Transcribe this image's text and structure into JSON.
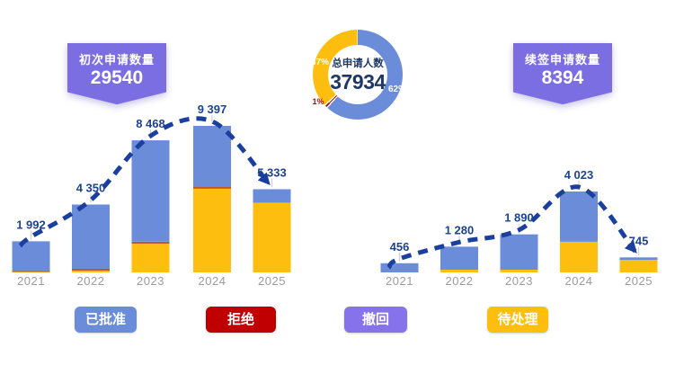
{
  "colors": {
    "badge_purple": "#7b6ee2",
    "approved_blue": "#6a8cd9",
    "pending_yellow": "#fdbe10",
    "rejected_red": "#c00000",
    "rejected_bar_orange": "#c2571f",
    "donut_rejected_dark_red": "#9c1010",
    "withdrawn_purple": "#8673eb",
    "trend_navy": "#1b3f9e",
    "value_label_navy": "#1c4390",
    "axis_gray": "#9b9b9b"
  },
  "badges": {
    "initial": {
      "title": "初次申请数量",
      "value": "29540"
    },
    "renewal": {
      "title": "续签申请数量",
      "value": "8394"
    }
  },
  "donut": {
    "center_title": "总申请人数",
    "center_value": "37934",
    "labels": {
      "blue": "62%",
      "yellow": "37%",
      "red": "1%"
    }
  },
  "legend": [
    {
      "label": "已批准",
      "color": "#6a8cd9"
    },
    {
      "label": "拒绝",
      "color": "#c00000"
    },
    {
      "label": "撤回",
      "color": "#8673eb"
    },
    {
      "label": "待处理",
      "color": "#fdbe10"
    }
  ],
  "chart_data": [
    {
      "type": "bar",
      "stacked": true,
      "title": "初次申请数量",
      "categories": [
        "2021",
        "2022",
        "2023",
        "2024",
        "2025"
      ],
      "totals": [
        1992,
        4350,
        8468,
        9397,
        5333
      ],
      "total_labels": [
        "1 992",
        "4 350",
        "8 468",
        "9 397",
        "5 333"
      ],
      "series": [
        {
          "name": "待处理",
          "color": "#fdbe10",
          "values": [
            30,
            115,
            1848,
            5367,
            4453
          ]
        },
        {
          "name": "拒绝",
          "color": "#c2571f",
          "values": [
            62,
            115,
            120,
            130,
            30
          ]
        },
        {
          "name": "已批准",
          "color": "#6a8cd9",
          "values": [
            1900,
            4120,
            6500,
            3900,
            850
          ]
        }
      ],
      "stack_order": "bottom-to-top",
      "trend_line": true,
      "ylim": [
        0,
        10000
      ],
      "grid": false
    },
    {
      "type": "bar",
      "stacked": true,
      "title": "续签申请数量",
      "categories": [
        "2021",
        "2022",
        "2023",
        "2024",
        "2025"
      ],
      "totals": [
        456,
        1280,
        1890,
        4023,
        745
      ],
      "total_labels": [
        "456",
        "1 280",
        "1 890",
        "4 023",
        "745"
      ],
      "series": [
        {
          "name": "待处理",
          "color": "#fdbe10",
          "values": [
            0,
            134,
            134,
            1523,
            625
          ]
        },
        {
          "name": "拒绝",
          "color": "#c2571f",
          "values": [
            0,
            0,
            0,
            0,
            0
          ]
        },
        {
          "name": "已批准",
          "color": "#6a8cd9",
          "values": [
            456,
            1146,
            1756,
            2500,
            120
          ]
        }
      ],
      "stack_order": "bottom-to-top",
      "trend_line": true,
      "ylim": [
        0,
        4300
      ],
      "grid": false
    },
    {
      "type": "pie",
      "title": "总申请人数",
      "center_value": 37934,
      "labels": [
        "已批准",
        "拒绝",
        "待处理"
      ],
      "values": [
        62,
        1,
        37
      ],
      "percent_labels": [
        "62%",
        "1%",
        "37%"
      ],
      "colors": [
        "#6a8cd9",
        "#9c1010",
        "#fdbe10"
      ],
      "legend_position": "none"
    }
  ]
}
